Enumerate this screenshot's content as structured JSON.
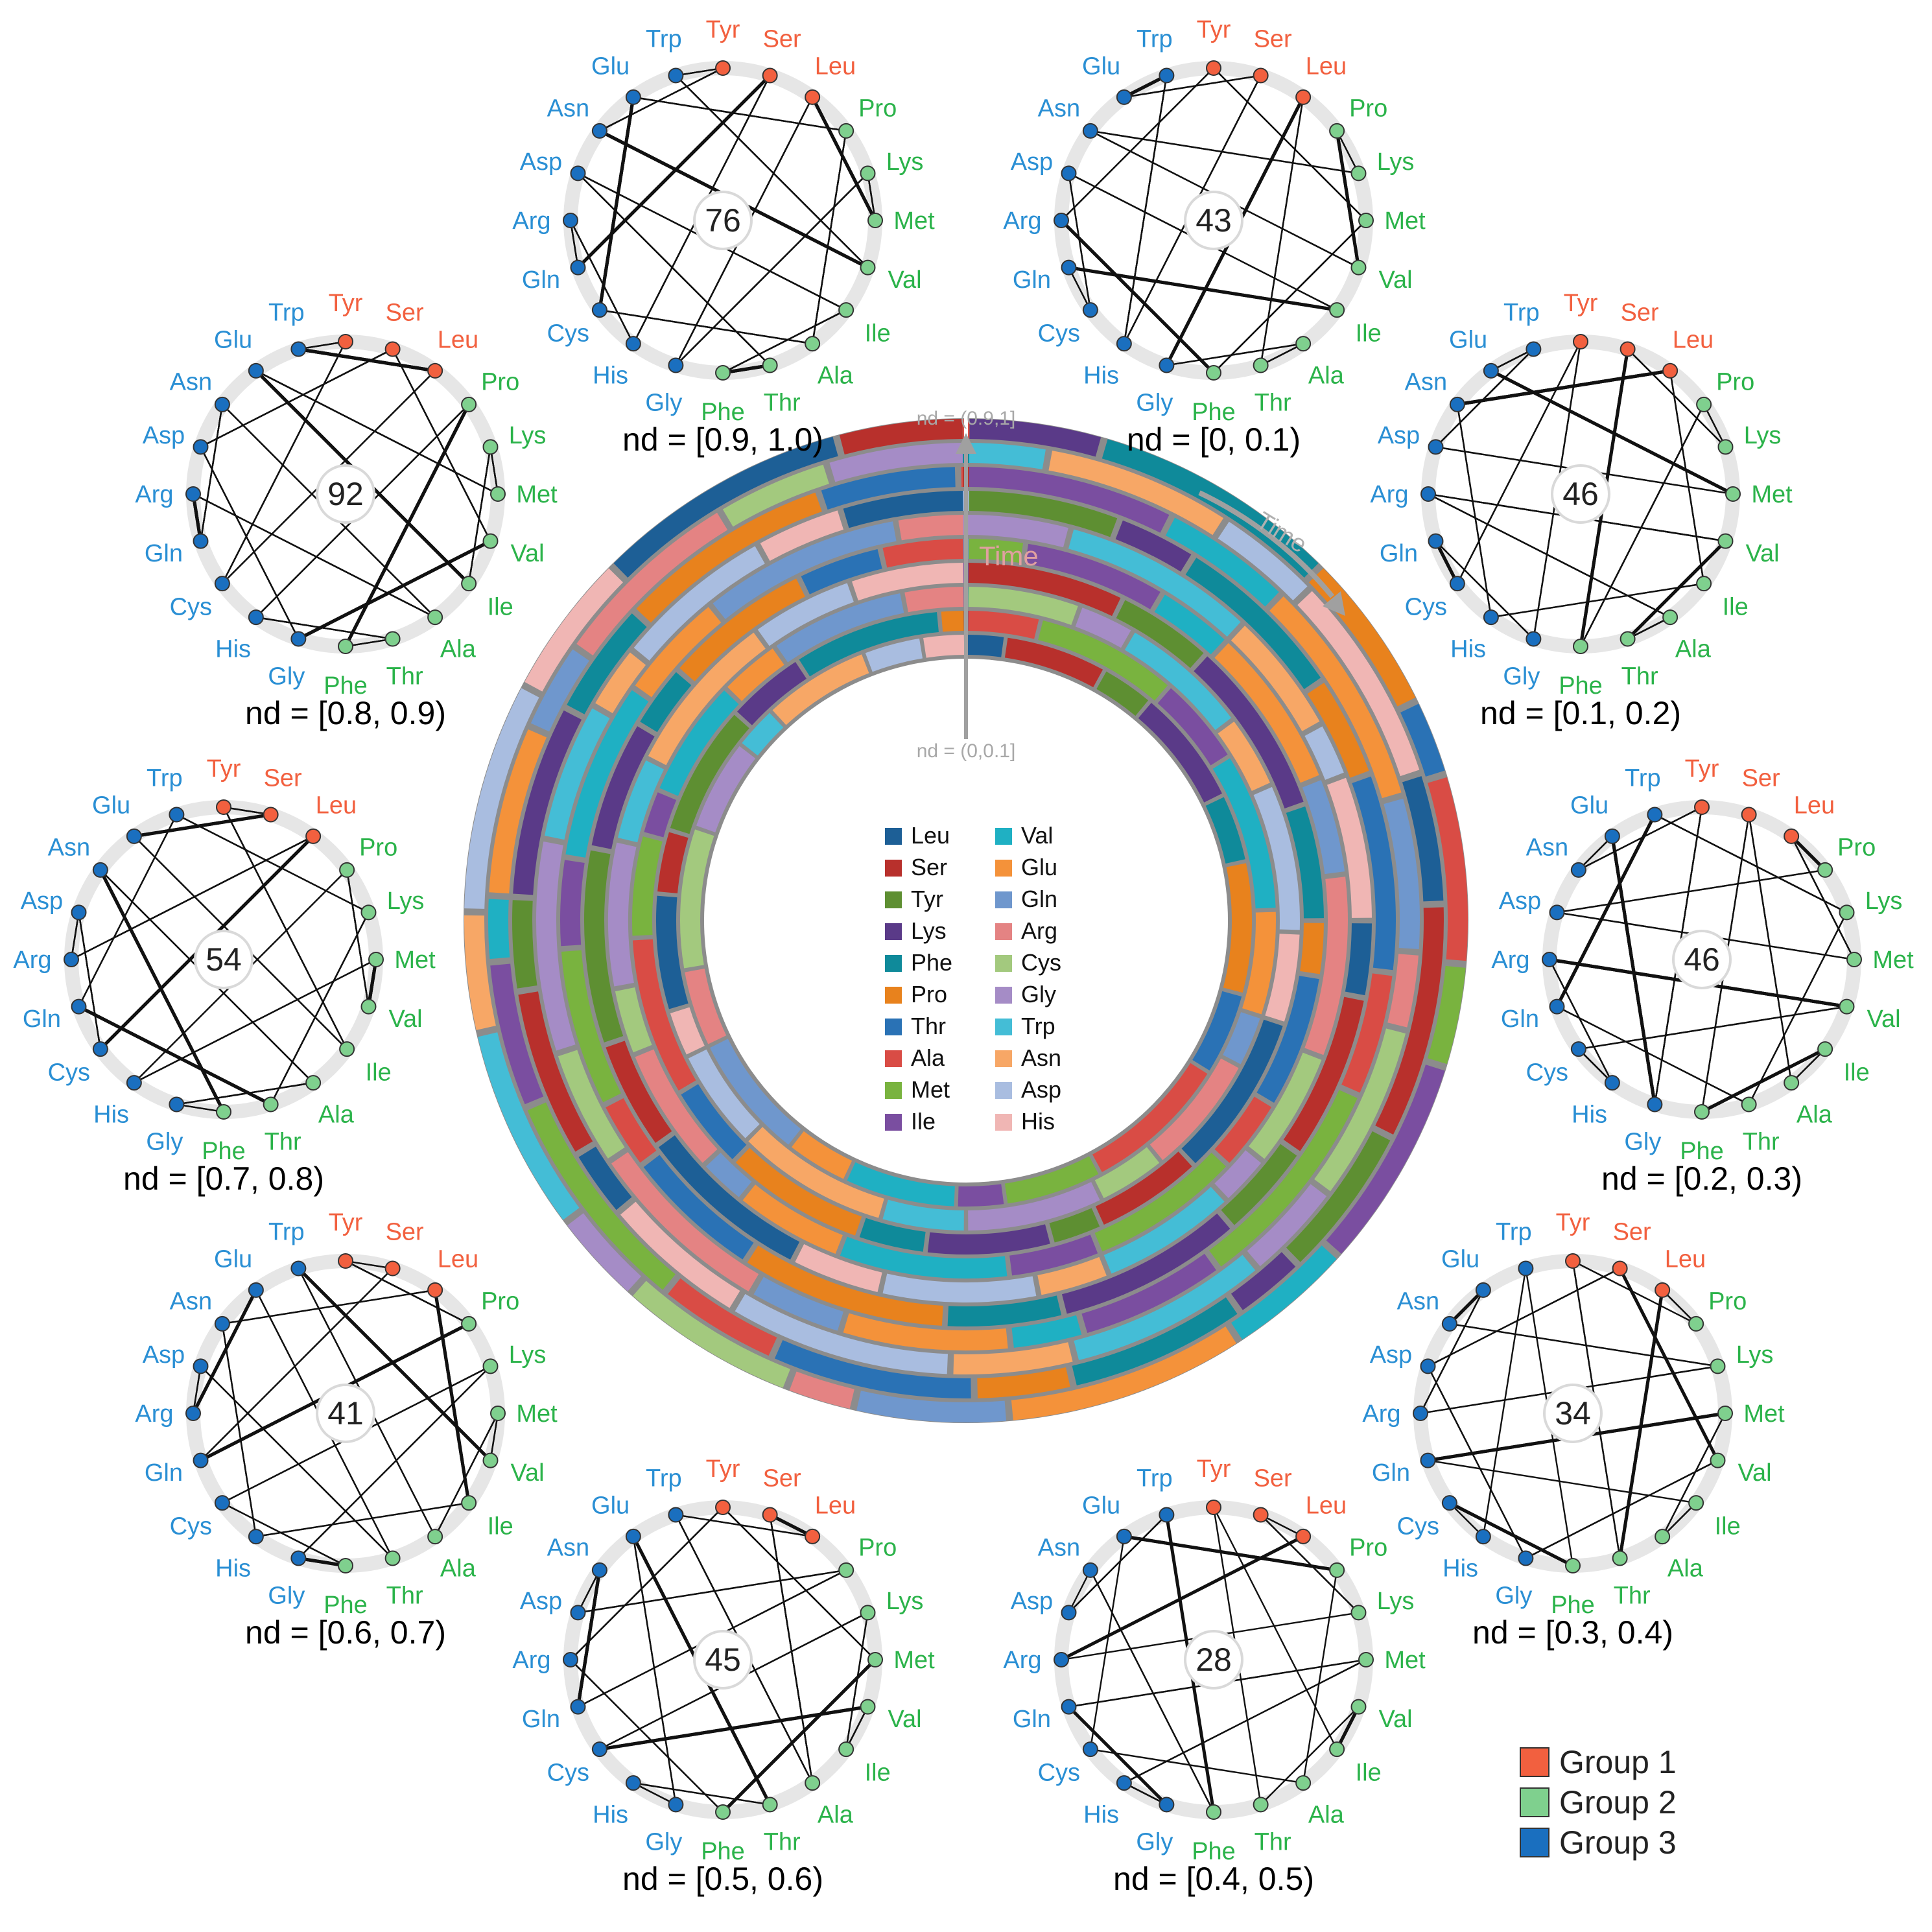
{
  "amino_acids": [
    "Leu",
    "Pro",
    "Lys",
    "Met",
    "Val",
    "Ile",
    "Ala",
    "Thr",
    "Phe",
    "Gly",
    "His",
    "Cys",
    "Gln",
    "Arg",
    "Asp",
    "Asn",
    "Glu",
    "Trp",
    "Tyr",
    "Ser"
  ],
  "groups": [
    {
      "label": "Group 1",
      "color": "#f2603f",
      "members": [
        "Tyr",
        "Ser",
        "Leu"
      ]
    },
    {
      "label": "Group 2",
      "color": "#7fd08e",
      "members": [
        "Pro",
        "Lys",
        "Met",
        "Val",
        "Ile",
        "Ala",
        "Thr",
        "Phe"
      ]
    },
    {
      "label": "Group 3",
      "color": "#1a6fbf",
      "members": [
        "Gly",
        "His",
        "Cys",
        "Gln",
        "Arg",
        "Asp",
        "Asn",
        "Glu",
        "Trp"
      ]
    }
  ],
  "label_colors": {
    "group1": "#f2603f",
    "group2": "#2bb34a",
    "group3": "#2a8fd4"
  },
  "networks": [
    {
      "label": "nd = [0.9, 1.0)",
      "count": "76"
    },
    {
      "label": "nd = [0, 0.1)",
      "count": "43"
    },
    {
      "label": "nd = [0.1, 0.2)",
      "count": "46"
    },
    {
      "label": "nd = [0.2, 0.3)",
      "count": "46"
    },
    {
      "label": "nd = [0.3, 0.4)",
      "count": "34"
    },
    {
      "label": "nd = [0.4, 0.5)",
      "count": "28"
    },
    {
      "label": "nd = [0.5, 0.6)",
      "count": "45"
    },
    {
      "label": "nd = [0.6, 0.7)",
      "count": "41"
    },
    {
      "label": "nd = [0.7, 0.8)",
      "count": "54"
    },
    {
      "label": "nd = [0.8, 0.9)",
      "count": "92"
    }
  ],
  "center": {
    "time_label": "Time",
    "arrow_time_label": "Time",
    "nd_outer_label": "nd = (0.9,1]",
    "nd_inner_label": "nd = (0,0.1]"
  },
  "legend_colors": {
    "Leu": "#1d5f96",
    "Ser": "#b8302c",
    "Tyr": "#5e8f32",
    "Lys": "#5a3a88",
    "Phe": "#0f8a9a",
    "Pro": "#e8821d",
    "Thr": "#2a72b5",
    "Ala": "#d94c45",
    "Met": "#79b33f",
    "Ile": "#7a4ea0",
    "Val": "#1fb0c3",
    "Glu": "#f4923a",
    "Gln": "#6f97cd",
    "Arg": "#e48383",
    "Cys": "#a3c97e",
    "Gly": "#a58cc6",
    "Trp": "#44bdd6",
    "Asn": "#f7a766",
    "Asp": "#a9bde0",
    "His": "#f0b6b4"
  },
  "legend_order": [
    "Leu",
    "Ser",
    "Tyr",
    "Lys",
    "Phe",
    "Pro",
    "Thr",
    "Ala",
    "Met",
    "Ile",
    "Val",
    "Glu",
    "Gln",
    "Arg",
    "Cys",
    "Gly",
    "Trp",
    "Asn",
    "Asp",
    "His"
  ]
}
